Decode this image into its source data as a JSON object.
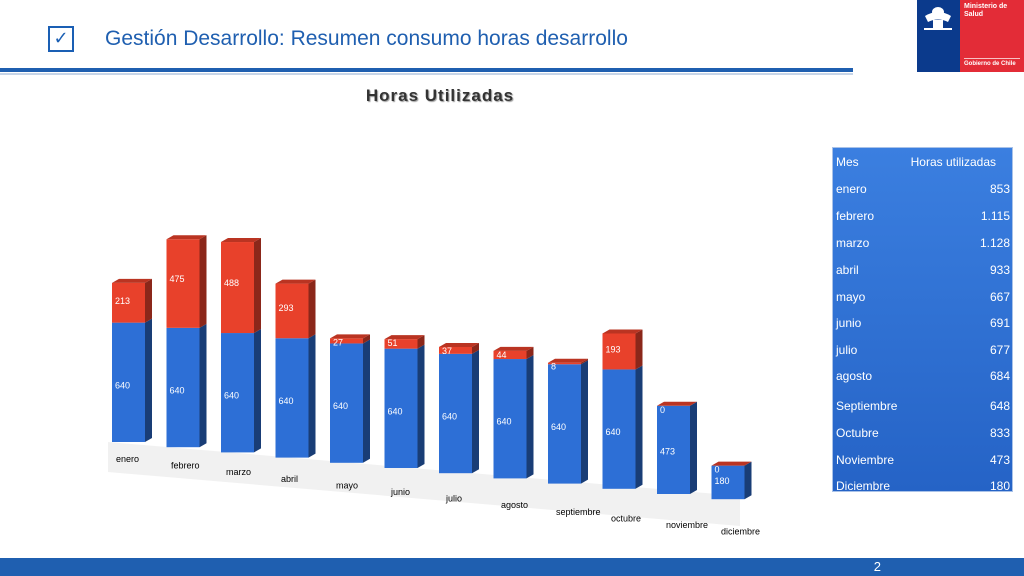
{
  "header": {
    "checkmark": "✓",
    "title": "Gestión Desarrollo: Resumen consumo horas desarrollo"
  },
  "logo": {
    "line1": "Ministerio de Salud",
    "line2": "Gobierno de Chile",
    "colors": {
      "blue": "#0b3a8c",
      "red": "#e32c37"
    }
  },
  "chart_data": {
    "type": "bar",
    "stacked": true,
    "title": "Horas Utilizadas",
    "categories": [
      "enero",
      "febrero",
      "marzo",
      "abril",
      "mayo",
      "junio",
      "julio",
      "agosto",
      "septiembre",
      "octubre",
      "noviembre",
      "diciembre"
    ],
    "series": [
      {
        "values": [
          640,
          640,
          640,
          640,
          640,
          640,
          640,
          640,
          640,
          640,
          473,
          180
        ],
        "color": "#2d6fd6"
      },
      {
        "values": [
          213,
          475,
          488,
          293,
          27,
          51,
          37,
          44,
          8,
          193,
          0,
          0
        ],
        "color": "#e8412b"
      }
    ],
    "grid": false,
    "legend": "none",
    "style": "3d-perspective-columns"
  },
  "table": {
    "headers": [
      "Mes",
      "Horas utilizadas"
    ],
    "rows": [
      [
        "enero",
        "853"
      ],
      [
        "febrero",
        "1.115"
      ],
      [
        "marzo",
        "1.128"
      ],
      [
        "abril",
        "933"
      ],
      [
        "mayo",
        "667"
      ],
      [
        "junio",
        "691"
      ],
      [
        "julio",
        "677"
      ],
      [
        "agosto",
        "684"
      ],
      [
        "Septiembre",
        "648"
      ],
      [
        "Octubre",
        "833"
      ],
      [
        "Noviembre",
        "473"
      ],
      [
        "Diciembre",
        "180"
      ]
    ]
  },
  "footer": {
    "page_number": "2"
  }
}
